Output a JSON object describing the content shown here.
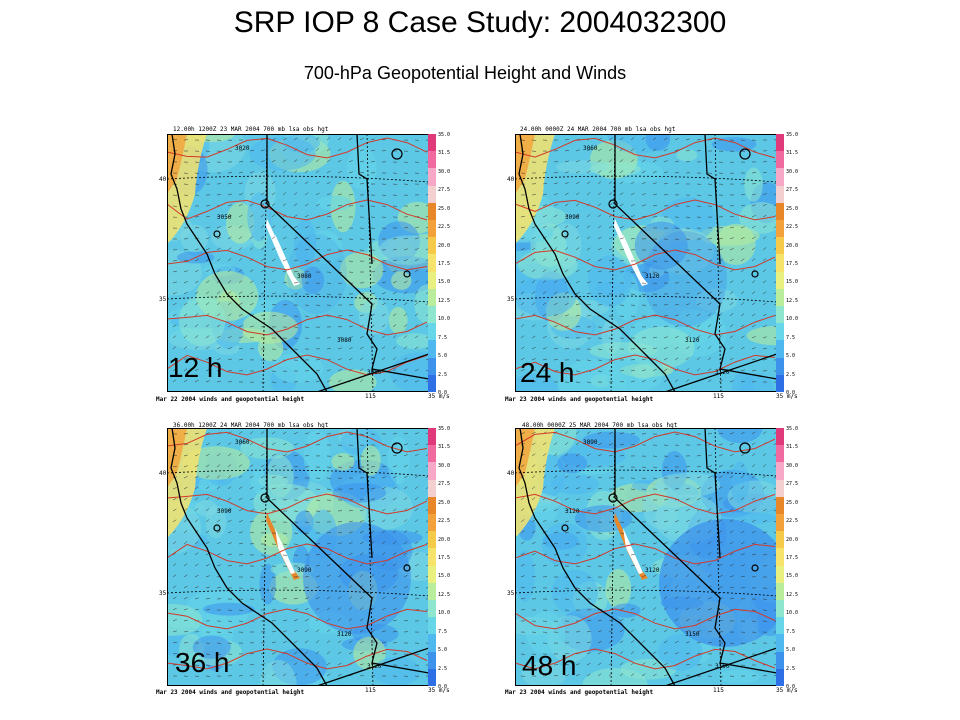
{
  "title": "SRP IOP 8 Case Study: 2004032300",
  "subtitle": "700-hPa Geopotential Height and Winds",
  "colorbar_ticks": [
    "35.0",
    "31.5",
    "30.0",
    "27.5",
    "25.0",
    "22.5",
    "20.0",
    "17.5",
    "15.0",
    "12.5",
    "10.0",
    "7.5",
    "5.0",
    "2.5",
    "0.0"
  ],
  "colorbar_colors": [
    "#e03a7a",
    "#f06aa0",
    "#f7a8c6",
    "#f3cfcf",
    "#e8862a",
    "#f3a13a",
    "#f5c94a",
    "#f6e36c",
    "#e9f07f",
    "#b9ec9b",
    "#8ee6cf",
    "#66d6e8",
    "#4fb8ee",
    "#3d93ec",
    "#2f6fe6"
  ],
  "panels": [
    {
      "id": "12h",
      "header": "12.00h   1200Z 23 MAR 2004    700 mb       lsa  obs  hgt",
      "caption": "Mar 22 2004  winds and geopotential height",
      "label": "12 h",
      "lat_top": "40",
      "lat_bottom": "35",
      "lon": "115",
      "ref_vec": "35 m/s",
      "contours": [
        "3020",
        "3050",
        "3080",
        "3080",
        "3080"
      ]
    },
    {
      "id": "24h",
      "header": "24.00h   0000Z 24 MAR 2004    700 mb       lsa  obs  hgt",
      "caption": "Mar 23 2004  winds and geopotential height",
      "label": "24 h",
      "lat_top": "40",
      "lat_bottom": "35",
      "lon": "115",
      "ref_vec": "35 m/s",
      "contours": [
        "3060",
        "3090",
        "3120",
        "3120",
        "3120"
      ]
    },
    {
      "id": "36h",
      "header": "36.00h   1200Z 24 MAR 2004    700 mb       lsa  obs  hgt",
      "caption": "Mar 23 2004  winds and geopotential height",
      "label": "36 h",
      "lat_top": "40",
      "lat_bottom": "35",
      "lon": "115",
      "ref_vec": "35 m/s",
      "contours": [
        "3060",
        "3090",
        "3090",
        "3120",
        "3120"
      ]
    },
    {
      "id": "48h",
      "header": "48.00h   0000Z 25 MAR 2004    700 mb       lsa  obs  hgt",
      "caption": "Mar 23 2004  winds and geopotential height",
      "label": "48 h",
      "lat_top": "40",
      "lat_bottom": "35",
      "lon": "115",
      "ref_vec": "35 m/s",
      "contours": [
        "3090",
        "3120",
        "3120",
        "3150",
        "3150"
      ]
    }
  ]
}
